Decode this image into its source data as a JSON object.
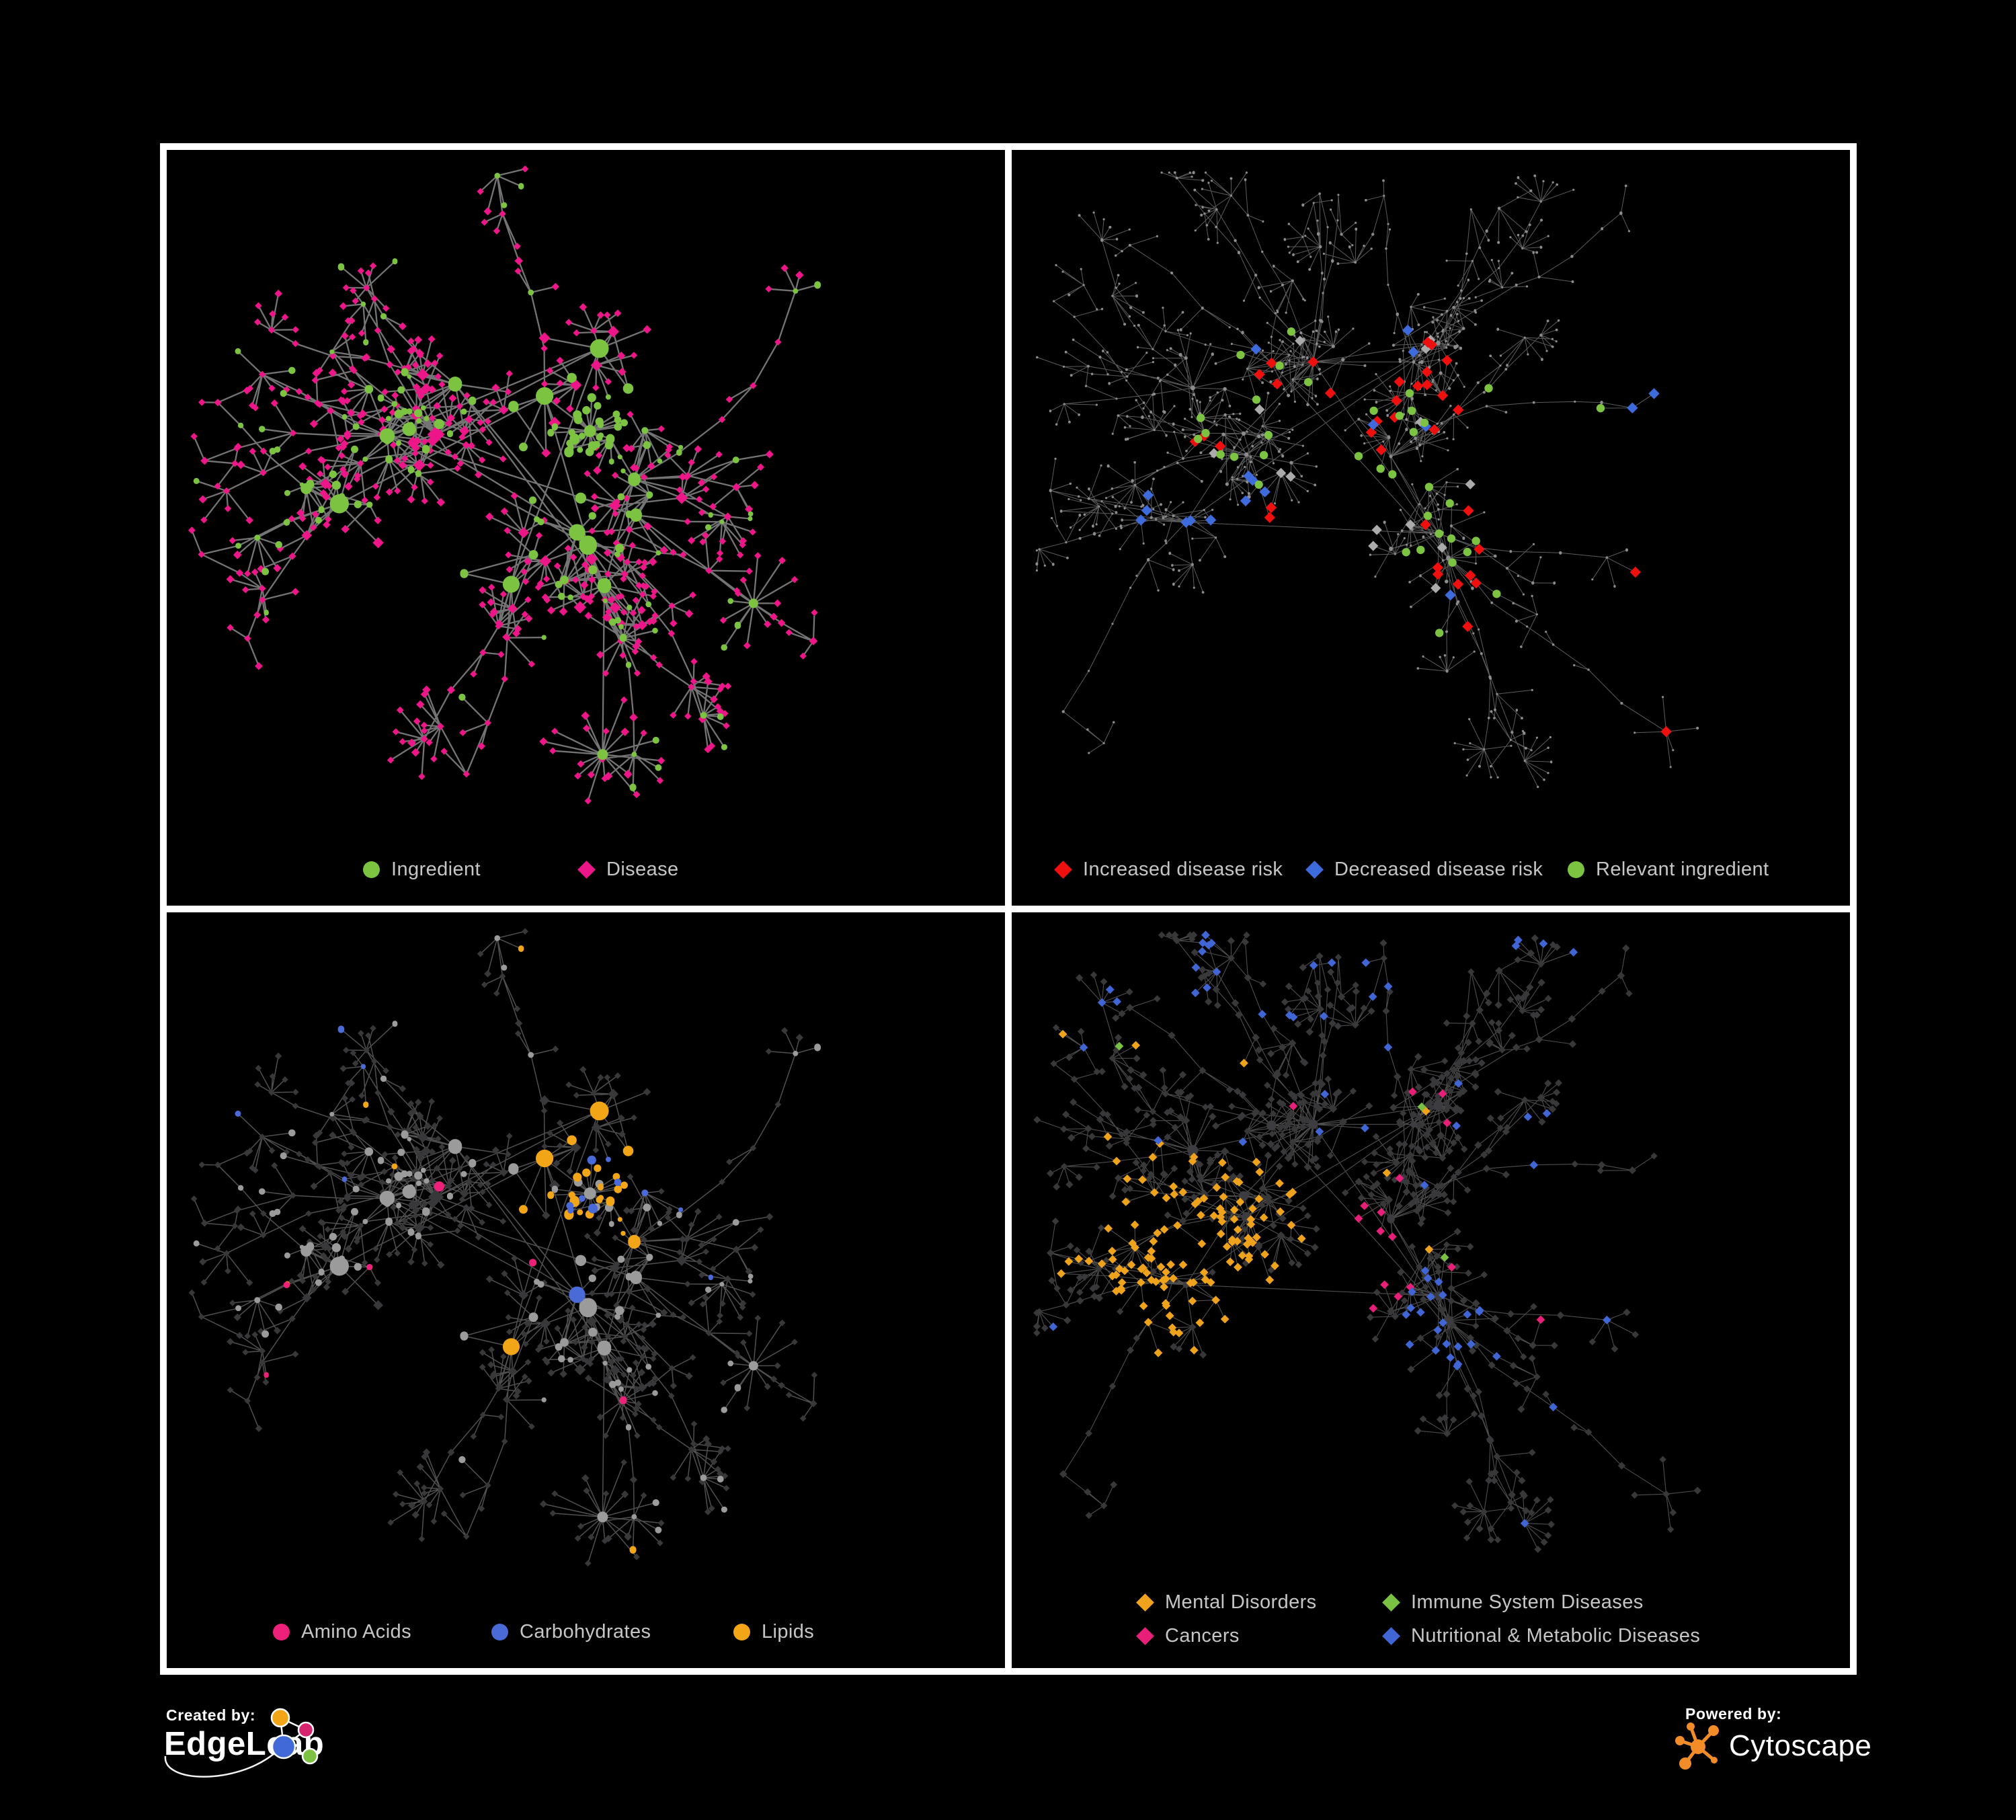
{
  "panels": [
    {
      "name": "ingredient-disease-network",
      "legend": [
        {
          "label": "Ingredient",
          "shape": "circle",
          "color": "#7CC342"
        },
        {
          "label": "Disease",
          "shape": "diamond",
          "color": "#ED1688"
        }
      ],
      "style": {
        "edge": "#7A7A7A",
        "edge_width": 2.3,
        "ingredient": "#7CC342",
        "disease": "#ED1688"
      }
    },
    {
      "name": "disease-risk-network",
      "legend": [
        {
          "label": "Increased disease risk",
          "shape": "diamond",
          "color": "#EE0F0F"
        },
        {
          "label": "Decreased disease risk",
          "shape": "diamond",
          "color": "#3E6BDB"
        },
        {
          "label": "Relevant ingredient",
          "shape": "circle",
          "color": "#7CC342"
        }
      ],
      "style": {
        "edge": "#6C6C6C",
        "edge_width": 1.0,
        "base": "#8C8C8C",
        "increased": "#EE0F0F",
        "decreased": "#3E6BDB",
        "neutral": "#ABABAB",
        "relevant": "#7CC342"
      }
    },
    {
      "name": "nutrient-class-network",
      "legend": [
        {
          "label": "Amino Acids",
          "shape": "circle",
          "color": "#ED2179"
        },
        {
          "label": "Carbohydrates",
          "shape": "circle",
          "color": "#4A6AD8"
        },
        {
          "label": "Lipids",
          "shape": "circle",
          "color": "#F2A516"
        }
      ],
      "style": {
        "edge": "#5E5E5E",
        "edge_width": 1.5,
        "base_circle": "#9B9B9B",
        "base_diamond": "#38383B",
        "amino": "#ED2179",
        "carb": "#4A6AD8",
        "lipid": "#F2A516"
      }
    },
    {
      "name": "disease-class-network",
      "legend": [
        {
          "label": "Mental Disorders",
          "shape": "diamond",
          "color": "#EFA31C"
        },
        {
          "label": "Immune System Diseases",
          "shape": "diamond",
          "color": "#79C142"
        },
        {
          "label": "Cancers",
          "shape": "diamond",
          "color": "#E81F78"
        },
        {
          "label": "Nutritional & Metabolic Diseases",
          "shape": "diamond",
          "color": "#3F66D4"
        }
      ],
      "style": {
        "edge": "#565656",
        "edge_width": 1.1,
        "base_diamond": "#38383B",
        "hub_circle": "#3D3D41",
        "mental": "#EFA31C",
        "immune": "#79C142",
        "cancer": "#E81F78",
        "nutritional": "#3F66D4"
      }
    }
  ],
  "footer": {
    "created_by": "Created by:",
    "created_name": "EdgeLeap",
    "powered_by": "Powered by:",
    "powered_name": "Cytoscape"
  },
  "branding_colors": {
    "edgeleap_orange": "#F2A516",
    "edgeleap_magenta": "#D6246E",
    "edgeleap_blue": "#4169D8",
    "edgeleap_green": "#7CC142",
    "cytoscape_orange": "#F28C28"
  },
  "canvas": {
    "background": "#000000",
    "panel_frame": "#FFFFFF",
    "legend_text": "#C6C6C6"
  }
}
